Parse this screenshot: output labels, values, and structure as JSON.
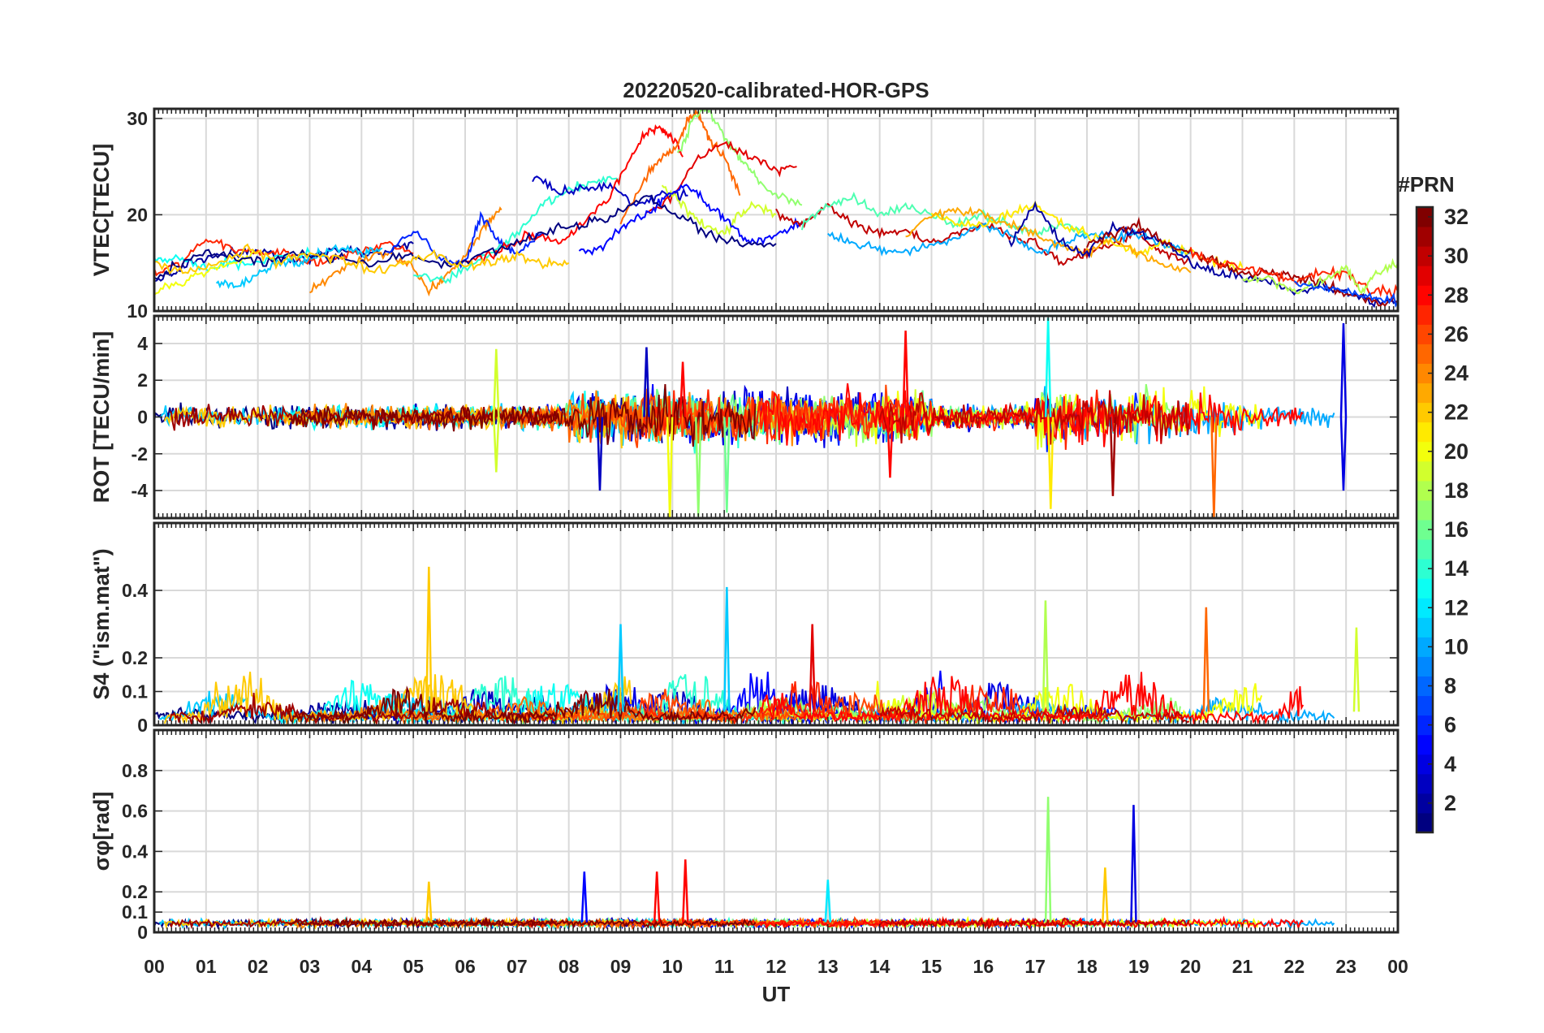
{
  "chart_data": {
    "title": "20220520-calibrated-HOR-GPS",
    "type": "line",
    "x_tick_labels": [
      "00",
      "01",
      "02",
      "03",
      "04",
      "05",
      "06",
      "07",
      "08",
      "09",
      "10",
      "11",
      "12",
      "13",
      "14",
      "15",
      "16",
      "17",
      "18",
      "19",
      "20",
      "21",
      "22",
      "23",
      "00"
    ],
    "xlabel": "UT",
    "xlim": [
      0,
      24
    ],
    "grid": true,
    "colorbar": {
      "title": "#PRN",
      "range": [
        1,
        32
      ],
      "ticks": [
        2,
        4,
        6,
        8,
        10,
        12,
        14,
        16,
        18,
        20,
        22,
        24,
        26,
        28,
        30,
        32
      ],
      "colormap": "jet",
      "colors": [
        "#00008f",
        "#0000ff",
        "#0080ff",
        "#00ffff",
        "#80ff80",
        "#ffff00",
        "#ff8000",
        "#ff0000",
        "#800000"
      ]
    },
    "panels": [
      {
        "ylabel": "VTEC[TECU]",
        "ylim": [
          10,
          31
        ],
        "yticks": [
          10,
          20,
          30
        ],
        "series": [
          {
            "prn": 2,
            "x": [
              0,
              0.5,
              1,
              1.5,
              2,
              2.5,
              3,
              3.5,
              4,
              4.5,
              5
            ],
            "y": [
              13,
              14.5,
              15.5,
              16,
              16,
              15.5,
              15.5,
              16.5,
              16,
              16,
              17
            ]
          },
          {
            "prn": 27,
            "x": [
              0,
              0.5,
              1,
              1.5,
              2,
              2.5,
              3,
              3.5,
              4,
              4.5,
              5
            ],
            "y": [
              14,
              15,
              17.5,
              16.5,
              16,
              16,
              15,
              15.5,
              16,
              17,
              16
            ]
          },
          {
            "prn": 13,
            "x": [
              0,
              0.5,
              1,
              1.5,
              2,
              2.5,
              3
            ],
            "y": [
              15,
              15.5,
              14.5,
              15,
              15,
              15.5,
              16
            ]
          },
          {
            "prn": 20,
            "x": [
              0,
              0.5,
              1,
              1.5,
              2
            ],
            "y": [
              12,
              13,
              14,
              15,
              16
            ]
          },
          {
            "prn": 11,
            "x": [
              1.2,
              1.6,
              2.0,
              2.4,
              2.8,
              3.2,
              3.6,
              4.0,
              4.4
            ],
            "y": [
              13,
              12.5,
              14,
              15,
              15,
              16,
              16.5,
              16,
              16.5
            ]
          },
          {
            "prn": 24,
            "x": [
              3,
              3.5,
              4,
              4.5,
              5,
              5.3,
              5.6,
              6,
              6.4,
              6.7
            ],
            "y": [
              12,
              14,
              15.5,
              16,
              14.5,
              12,
              13.5,
              16,
              19,
              20.5
            ]
          },
          {
            "prn": 6,
            "x": [
              4.5,
              5,
              5.5,
              6,
              6.3,
              6.7,
              7,
              7.5
            ],
            "y": [
              16,
              18.5,
              15.5,
              15,
              20,
              17,
              16,
              18
            ]
          },
          {
            "prn": 14,
            "x": [
              5,
              5.5,
              6,
              6.5,
              7,
              7.5,
              8,
              8.5,
              9
            ],
            "y": [
              14,
              13,
              14.5,
              16,
              18,
              21,
              22.5,
              23.5,
              24
            ]
          },
          {
            "prn": 3,
            "x": [
              7.3,
              7.8,
              8.3,
              8.8,
              9.3,
              9.8,
              10.3
            ],
            "y": [
              24,
              22.5,
              22.8,
              23,
              21,
              22,
              22
            ]
          },
          {
            "prn": 28,
            "x": [
              6,
              6.6,
              7.2,
              7.8,
              8.3,
              8.8,
              9.2,
              9.5,
              9.8,
              10,
              10.2
            ],
            "y": [
              15,
              16,
              18,
              17,
              19,
              22,
              26,
              28.5,
              29,
              28,
              26
            ]
          },
          {
            "prn": 25,
            "x": [
              9,
              9.5,
              9.8,
              10.1,
              10.3,
              10.5,
              10.7,
              11,
              11.3
            ],
            "y": [
              19,
              24,
              26,
              27,
              30,
              30.5,
              28,
              26,
              22
            ]
          },
          {
            "prn": 17,
            "x": [
              10.1,
              10.4,
              10.7,
              11,
              11.3,
              11.6,
              12,
              12.5
            ],
            "y": [
              26,
              30,
              31,
              28,
              26,
              24,
              22,
              21
            ]
          },
          {
            "prn": 29,
            "x": [
              9.5,
              10,
              10.5,
              11,
              11.5,
              12,
              12.4
            ],
            "y": [
              20,
              22,
              26,
              27.5,
              26,
              24.5,
              25
            ]
          },
          {
            "prn": 19,
            "x": [
              9.8,
              10.2,
              10.6,
              11,
              11.3,
              11.6,
              12
            ],
            "y": [
              23,
              21,
              19,
              18,
              20,
              21,
              20
            ]
          },
          {
            "prn": 5,
            "x": [
              8.2,
              8.7,
              9.1,
              9.5,
              9.9,
              10.3,
              10.7,
              11.1,
              11.5,
              12,
              12.5
            ],
            "y": [
              16,
              17,
              19,
              20,
              22,
              23,
              21,
              19,
              17,
              18,
              19
            ]
          },
          {
            "prn": 1,
            "x": [
              0,
              0.7,
              1.4,
              2.1,
              2.8,
              3.5,
              4.2,
              4.9,
              5.6,
              6.3,
              7,
              7.7,
              8.3,
              8.9,
              9.5,
              10.1,
              10.7,
              11.3,
              12
            ],
            "y": [
              13.5,
              15.5,
              16,
              15,
              16,
              15.5,
              15,
              16,
              14.5,
              16,
              17,
              18.5,
              19,
              20,
              22,
              20,
              18,
              17,
              17
            ]
          },
          {
            "prn": 22,
            "x": [
              0,
              0.6,
              1.2,
              1.8,
              2.4,
              3,
              3.6,
              4.2,
              4.8,
              5.4,
              6,
              6.5,
              7,
              7.5,
              8
            ],
            "y": [
              15,
              14,
              15,
              16.5,
              15,
              16,
              15.5,
              14,
              15,
              16,
              14.5,
              15,
              15.5,
              15,
              15
            ]
          },
          {
            "prn": 30,
            "x": [
              12,
              12.5,
              13,
              13.5,
              14,
              14.5,
              15,
              15.5,
              16,
              16.5,
              17,
              17.5,
              18,
              18.5,
              19,
              19.5,
              20
            ],
            "y": [
              20,
              19,
              21,
              19,
              18,
              18.5,
              17,
              18,
              19,
              18,
              17,
              15,
              16,
              17,
              18,
              16,
              15
            ]
          },
          {
            "prn": 15,
            "x": [
              12.5,
              13,
              13.5,
              14,
              14.5,
              15,
              15.5,
              16,
              16.5,
              17,
              17.5,
              18
            ],
            "y": [
              19,
              21,
              22,
              20,
              21,
              20,
              19,
              20,
              19,
              18,
              19,
              18
            ]
          },
          {
            "prn": 10,
            "x": [
              13,
              13.5,
              14,
              14.5,
              15,
              15.5,
              16,
              16.5,
              17,
              17.5,
              18,
              18.5,
              19,
              19.5,
              20
            ],
            "y": [
              18,
              17,
              16.5,
              16,
              17,
              17.5,
              19,
              18,
              16,
              17,
              18,
              17.5,
              18,
              17,
              16
            ]
          },
          {
            "prn": 21,
            "x": [
              15,
              15.5,
              16,
              16.5,
              17,
              17.5,
              18,
              18.5,
              19,
              19.5,
              20,
              20.5,
              21
            ],
            "y": [
              20,
              19,
              19,
              20,
              21,
              19,
              18,
              17,
              16,
              17,
              16,
              15,
              14.5
            ]
          },
          {
            "prn": 23,
            "x": [
              14.5,
              15,
              15.5,
              16,
              16.5,
              17,
              17.5,
              18,
              18.5,
              19,
              19.5,
              20
            ],
            "y": [
              18,
              20,
              20.5,
              20,
              19,
              18,
              17,
              16,
              17.5,
              16,
              15,
              14
            ]
          },
          {
            "prn": 2,
            "x": [
              16.5,
              17,
              17.5,
              18,
              18.5,
              19,
              19.5,
              20,
              20.5,
              21,
              21.5,
              22,
              22.5,
              23,
              23.5,
              24
            ],
            "y": [
              17,
              21,
              17,
              16,
              19,
              18,
              17,
              15,
              14,
              13.5,
              13,
              12,
              12.5,
              12,
              11,
              11
            ]
          },
          {
            "prn": 31,
            "x": [
              18,
              18.5,
              19,
              19.5,
              20,
              20.5,
              21,
              21.5,
              22,
              22.5,
              23,
              23.5,
              24
            ],
            "y": [
              17,
              18,
              19,
              17,
              16,
              15,
              14,
              14,
              13.5,
              13,
              12,
              11,
              11
            ]
          },
          {
            "prn": 27,
            "x": [
              20,
              20.5,
              21,
              21.5,
              22,
              22.5,
              23,
              23.5,
              24
            ],
            "y": [
              16,
              15,
              14.5,
              14,
              13,
              14,
              14,
              12,
              12
            ]
          },
          {
            "prn": 18,
            "x": [
              21,
              21.5,
              22,
              22.5,
              23,
              23.3,
              23.6,
              24
            ],
            "y": [
              13,
              13.5,
              12,
              13,
              14.5,
              12,
              14,
              15
            ]
          },
          {
            "prn": 7,
            "x": [
              22,
              22.5,
              23,
              23.5,
              24
            ],
            "y": [
              13,
              12.5,
              12,
              11.5,
              11
            ]
          }
        ]
      },
      {
        "ylabel": "ROT [TECU/min]",
        "ylim": [
          -5.5,
          5.5
        ],
        "yticks": [
          -4,
          -2,
          0,
          2,
          4
        ],
        "spikes": [
          {
            "prn": 19,
            "x": 6.6,
            "y": 3.7
          },
          {
            "prn": 19,
            "x": 6.6,
            "y": -3
          },
          {
            "prn": 3,
            "x": 9.5,
            "y": 3.8
          },
          {
            "prn": 3,
            "x": 8.6,
            "y": -4
          },
          {
            "prn": 20,
            "x": 9.95,
            "y": -5.5
          },
          {
            "prn": 17,
            "x": 10.5,
            "y": -5.4
          },
          {
            "prn": 16,
            "x": 11.05,
            "y": -5.2
          },
          {
            "prn": 28,
            "x": 10.2,
            "y": 3
          },
          {
            "prn": 28,
            "x": 14.5,
            "y": 4.7
          },
          {
            "prn": 28,
            "x": 14.2,
            "y": -3.3
          },
          {
            "prn": 13,
            "x": 17.25,
            "y": 5.4
          },
          {
            "prn": 21,
            "x": 17.3,
            "y": -5
          },
          {
            "prn": 31,
            "x": 18.5,
            "y": -4.3
          },
          {
            "prn": 25,
            "x": 20.45,
            "y": -5.5
          },
          {
            "prn": 4,
            "x": 22.95,
            "y": 5.1
          },
          {
            "prn": 4,
            "x": 22.95,
            "y": -4
          }
        ]
      },
      {
        "ylabel": "S4 (\"ism.mat\")",
        "ylim": [
          0,
          0.6
        ],
        "yticks": [
          0,
          0.1,
          0.2,
          0.4
        ],
        "spikes": [
          {
            "prn": 22,
            "x": 5.3,
            "y": 0.47
          },
          {
            "prn": 11,
            "x": 11.05,
            "y": 0.41
          },
          {
            "prn": 18,
            "x": 17.2,
            "y": 0.37
          },
          {
            "prn": 25,
            "x": 20.3,
            "y": 0.35
          },
          {
            "prn": 29,
            "x": 12.7,
            "y": 0.3
          },
          {
            "prn": 19,
            "x": 23.2,
            "y": 0.29
          },
          {
            "prn": 11,
            "x": 9.0,
            "y": 0.3
          }
        ]
      },
      {
        "ylabel": "σφ[rad]",
        "ylim": [
          0,
          1.0
        ],
        "yticks": [
          0,
          0.1,
          0.2,
          0.4,
          0.6,
          0.8
        ],
        "spikes": [
          {
            "prn": 17,
            "x": 17.25,
            "y": 0.67
          },
          {
            "prn": 4,
            "x": 18.9,
            "y": 0.63
          },
          {
            "prn": 28,
            "x": 10.25,
            "y": 0.36
          },
          {
            "prn": 22,
            "x": 18.35,
            "y": 0.32
          },
          {
            "prn": 28,
            "x": 9.7,
            "y": 0.3
          },
          {
            "prn": 5,
            "x": 8.3,
            "y": 0.3
          },
          {
            "prn": 12,
            "x": 13.0,
            "y": 0.26
          },
          {
            "prn": 22,
            "x": 5.3,
            "y": 0.25
          }
        ]
      }
    ]
  }
}
